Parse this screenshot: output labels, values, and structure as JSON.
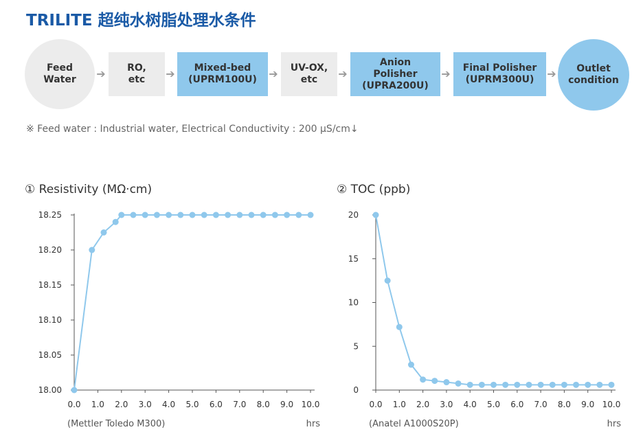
{
  "title": "TRILITE 超纯水树脂处理水条件",
  "flow": {
    "nodes": [
      {
        "label": "Feed\nWater",
        "shape": "circle",
        "color": "gray"
      },
      {
        "label": "RO,\netc",
        "shape": "box",
        "color": "gray"
      },
      {
        "label": "Mixed-bed\n(UPRM100U)",
        "shape": "box",
        "color": "blue"
      },
      {
        "label": "UV-OX,\netc",
        "shape": "box",
        "color": "gray"
      },
      {
        "label": "Anion\nPolisher\n(UPRA200U)",
        "shape": "box",
        "color": "blue"
      },
      {
        "label": "Final Polisher\n(UPRM300U)",
        "shape": "box",
        "color": "blue"
      },
      {
        "label": "Outlet\ncondition",
        "shape": "circle",
        "color": "blue"
      }
    ],
    "arrow_icon": "arrow-right-icon",
    "colors": {
      "gray": "#ececec",
      "blue": "#8fc8ec"
    }
  },
  "note": "※ Feed water : Industrial water, Electrical Conductivity : 200 µS/cm↓",
  "chart_data": [
    {
      "type": "line",
      "title": "① Resistivity (MΩ·cm)",
      "xlabel": "hrs",
      "instrument": "(Mettler Toledo M300)",
      "x_ticks": [
        "0.0",
        "1.0",
        "2.0",
        "3.0",
        "4.0",
        "5.0",
        "6.0",
        "7.0",
        "8.0",
        "9.0",
        "10.0"
      ],
      "y_ticks": [
        "18.00",
        "18.05",
        "18.10",
        "18.15",
        "18.20",
        "18.25"
      ],
      "xlim": [
        0,
        10
      ],
      "ylim": [
        18.0,
        18.25
      ],
      "color": "#8fc8ec",
      "series": [
        {
          "x": [
            0,
            0.75,
            1.25,
            1.75,
            2.0,
            2.5,
            3.0,
            3.5,
            4.0,
            4.5,
            5.0,
            5.5,
            6.0,
            6.5,
            7.0,
            7.5,
            8.0,
            8.5,
            9.0,
            9.5,
            10.0
          ],
          "values": [
            18.0,
            18.2,
            18.225,
            18.24,
            18.25,
            18.25,
            18.25,
            18.25,
            18.25,
            18.25,
            18.25,
            18.25,
            18.25,
            18.25,
            18.25,
            18.25,
            18.25,
            18.25,
            18.25,
            18.25,
            18.25
          ]
        }
      ]
    },
    {
      "type": "line",
      "title": "② TOC (ppb)",
      "xlabel": "hrs",
      "instrument": "(Anatel A1000S20P)",
      "x_ticks": [
        "0.0",
        "1.0",
        "2.0",
        "3.0",
        "4.0",
        "5.0",
        "6.0",
        "7.0",
        "8.0",
        "9.0",
        "10.0"
      ],
      "y_ticks": [
        "0",
        "5",
        "10",
        "15",
        "20"
      ],
      "xlim": [
        0,
        10
      ],
      "ylim": [
        0,
        20
      ],
      "color": "#8fc8ec",
      "series": [
        {
          "x": [
            0,
            0.5,
            1.0,
            1.5,
            2.0,
            2.5,
            3.0,
            3.5,
            4.0,
            4.5,
            5.0,
            5.5,
            6.0,
            6.5,
            7.0,
            7.5,
            8.0,
            8.5,
            9.0,
            9.5,
            10.0
          ],
          "values": [
            20,
            12.5,
            7.2,
            2.9,
            1.2,
            1.05,
            0.9,
            0.75,
            0.6,
            0.6,
            0.6,
            0.6,
            0.6,
            0.6,
            0.6,
            0.6,
            0.6,
            0.6,
            0.6,
            0.6,
            0.6
          ]
        }
      ]
    }
  ]
}
